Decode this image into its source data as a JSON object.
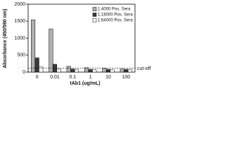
{
  "chart_data": {
    "type": "bar",
    "y_label": "Absorbance (450/590 nm)",
    "x_label": "tAb1 (ug/mL)",
    "categories": [
      "0",
      "0.01",
      "0.1",
      "1",
      "10",
      "100"
    ],
    "series": [
      {
        "name": "1:4000 Pos. Sera",
        "color": "#b0b0b0",
        "values": [
          1540,
          1270,
          170,
          130,
          110,
          90
        ]
      },
      {
        "name": "1:16000 Pos. Sera",
        "color": "#3a3a3a",
        "values": [
          420,
          230,
          90,
          80,
          80,
          80
        ]
      },
      {
        "name": "1:64000 Pos. Sera",
        "color": "#ffffff",
        "values": [
          150,
          90,
          80,
          70,
          70,
          80
        ]
      }
    ],
    "cutoff": {
      "value": 120,
      "label": "cut-off"
    },
    "ylim": [
      0,
      2000
    ],
    "yticks": [
      0,
      500,
      1000,
      1500,
      2000
    ],
    "legend": "top-right"
  }
}
